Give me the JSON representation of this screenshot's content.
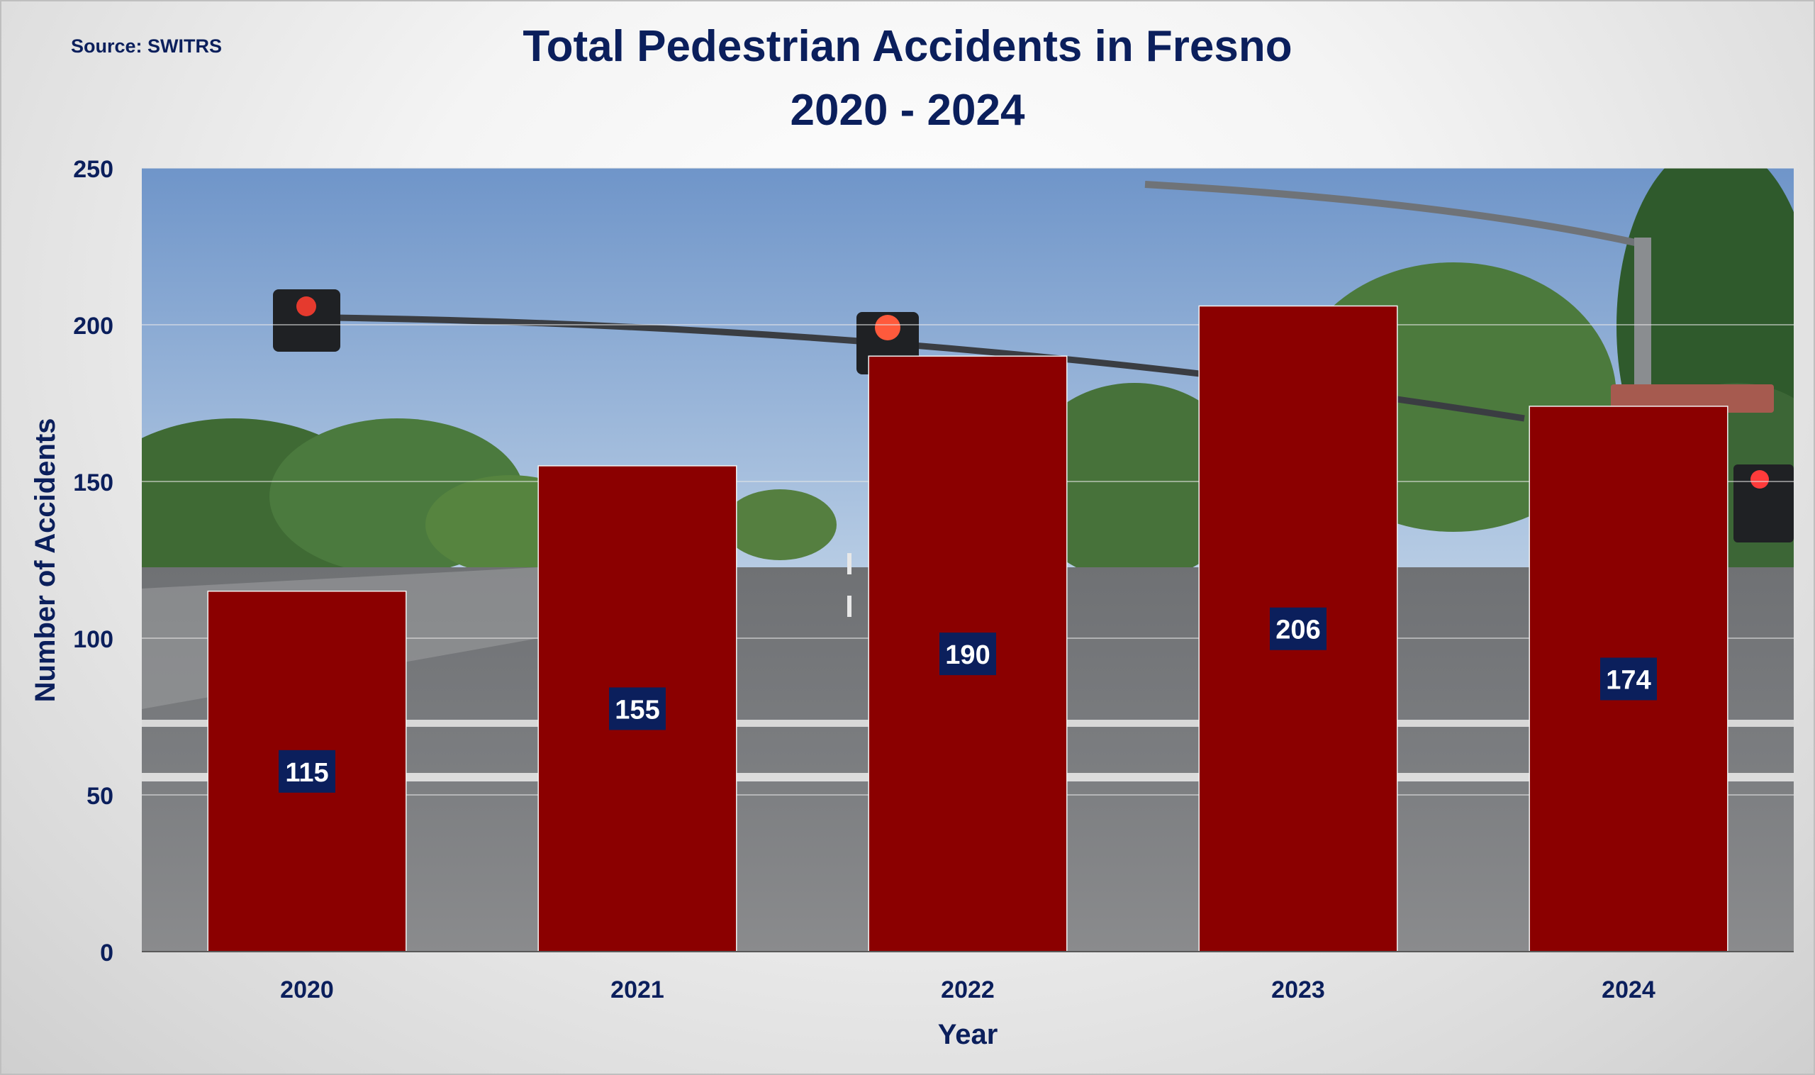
{
  "source_note": "Source: SWITRS",
  "chart_data": {
    "type": "bar",
    "title": "Total Pedestrian Accidents in Fresno",
    "subtitle": "2020 - 2024",
    "xlabel": "Year",
    "ylabel": "Number of Accidents",
    "categories": [
      "2020",
      "2021",
      "2022",
      "2023",
      "2024"
    ],
    "values": [
      115,
      155,
      190,
      206,
      174
    ],
    "ylim": [
      0,
      250
    ],
    "yticks": [
      0,
      50,
      100,
      150,
      200,
      250
    ],
    "grid": true,
    "data_labels": true,
    "background": "street intersection photograph with traffic signals and a Sierra street sign",
    "colors": {
      "bar": "#8b0000",
      "label_box": "#0b1f5c",
      "label_text": "#ffffff",
      "text": "#0b1f5c"
    }
  }
}
